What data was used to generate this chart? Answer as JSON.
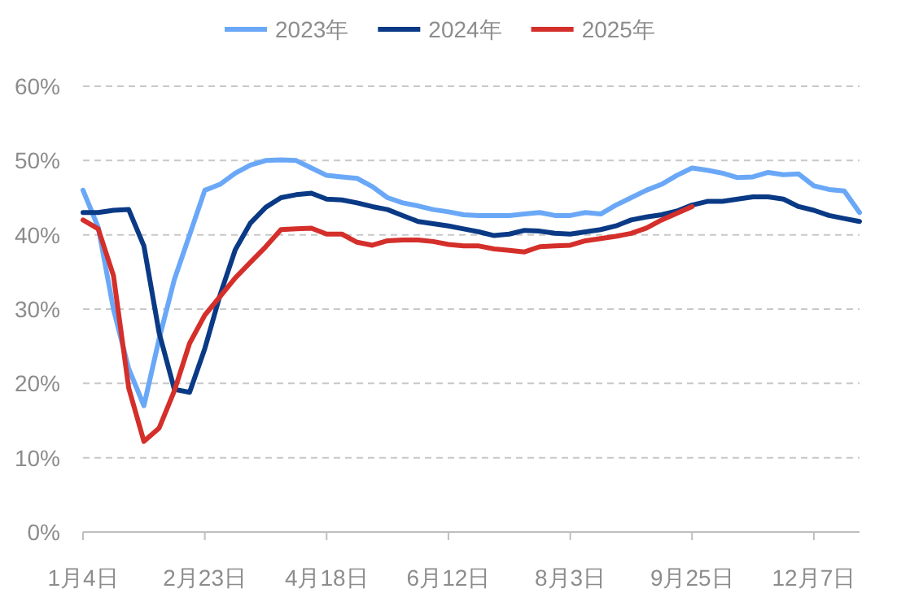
{
  "chart_data": {
    "type": "line",
    "categories": [
      "1月4日",
      null,
      null,
      null,
      null,
      null,
      null,
      null,
      "2月23日",
      null,
      null,
      null,
      null,
      null,
      null,
      null,
      "4月18日",
      null,
      null,
      null,
      null,
      null,
      null,
      null,
      "6月12日",
      null,
      null,
      null,
      null,
      null,
      null,
      null,
      "8月3日",
      null,
      null,
      null,
      null,
      null,
      null,
      null,
      "9月25日",
      null,
      null,
      null,
      null,
      null,
      null,
      null,
      "12月7日",
      null,
      null,
      null
    ],
    "series": [
      {
        "name": "2023年",
        "color": "#6aa8f7",
        "values": [
          46,
          41,
          30,
          22,
          17,
          26,
          34,
          40,
          46,
          46.8,
          48.3,
          49.4,
          50,
          50.1,
          50,
          49,
          48,
          47.8,
          47.6,
          46.5,
          45,
          44.3,
          43.9,
          43.4,
          43.1,
          42.7,
          42.6,
          42.6,
          42.6,
          42.8,
          43,
          42.6,
          42.6,
          43,
          42.8,
          44,
          45,
          46,
          46.8,
          48,
          49,
          48.7,
          48.3,
          47.7,
          47.8,
          48.4,
          48.1,
          48.2,
          46.6,
          46.1,
          45.9,
          43
        ]
      },
      {
        "name": "2024年",
        "color": "#0a3a85",
        "values": [
          43,
          43,
          43.3,
          43.4,
          38.5,
          26.8,
          19.2,
          18.8,
          24.7,
          31.9,
          38,
          41.6,
          43.7,
          45,
          45.4,
          45.6,
          44.8,
          44.7,
          44.3,
          43.8,
          43.4,
          42.6,
          41.8,
          41.5,
          41.2,
          40.8,
          40.4,
          39.9,
          40.1,
          40.6,
          40.5,
          40.2,
          40.1,
          40.4,
          40.7,
          41.2,
          42,
          42.4,
          42.7,
          43.2,
          44,
          44.5,
          44.5,
          44.8,
          45.1,
          45.1,
          44.8,
          43.8,
          43.3,
          42.6,
          42.2,
          41.8
        ]
      },
      {
        "name": "2025年",
        "color": "#d42f2a",
        "values": [
          42,
          40.8,
          34.5,
          19.4,
          12.2,
          14,
          19,
          25.4,
          29.2,
          31.7,
          34.2,
          36.3,
          38.4,
          40.7,
          40.8,
          40.9,
          40.1,
          40.1,
          39,
          38.6,
          39.2,
          39.3,
          39.3,
          39.1,
          38.7,
          38.5,
          38.5,
          38.1,
          37.9,
          37.7,
          38.4,
          38.5,
          38.6,
          39.2,
          39.5,
          39.8,
          40.2,
          40.9,
          42,
          42.9,
          43.8,
          null,
          null,
          null,
          null,
          null,
          null,
          null,
          null,
          null,
          null,
          null
        ]
      }
    ],
    "ylim": [
      0,
      60
    ],
    "yticks": [
      {
        "value": 0,
        "label": "0%"
      },
      {
        "value": 10,
        "label": "10%"
      },
      {
        "value": 20,
        "label": "20%"
      },
      {
        "value": 30,
        "label": "30%"
      },
      {
        "value": 40,
        "label": "40%"
      },
      {
        "value": 50,
        "label": "50%"
      },
      {
        "value": 60,
        "label": "60%"
      }
    ],
    "grid": "y",
    "legend": "top"
  }
}
